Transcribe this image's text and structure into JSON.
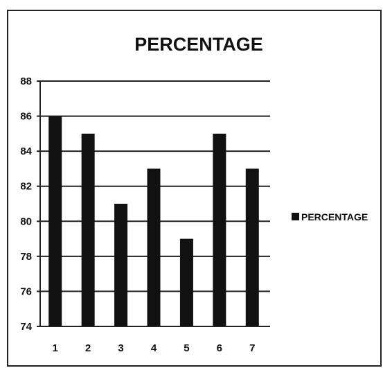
{
  "chart_data": {
    "type": "bar",
    "title": "PERCENTAGE",
    "categories": [
      "1",
      "2",
      "3",
      "4",
      "5",
      "6",
      "7"
    ],
    "series": [
      {
        "name": "PERCENTAGE",
        "values": [
          86,
          85,
          81,
          83,
          79,
          85,
          83
        ]
      }
    ],
    "ylim": [
      74,
      88
    ],
    "yticks": [
      74,
      76,
      78,
      80,
      82,
      84,
      86,
      88
    ],
    "xlabel": "",
    "ylabel": "",
    "grid": true,
    "legend": "right",
    "bar_color": "#111111"
  }
}
